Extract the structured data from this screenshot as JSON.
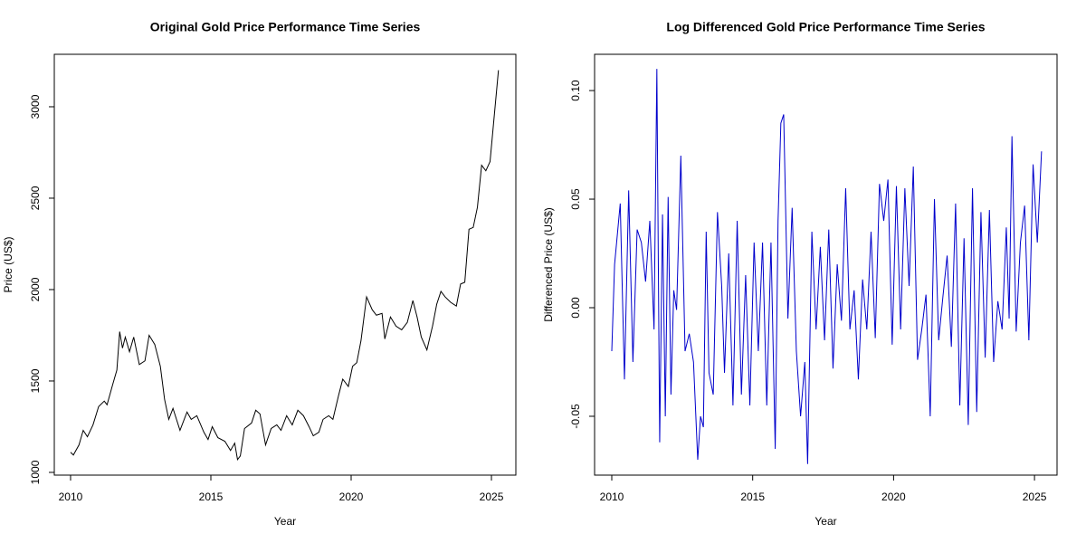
{
  "chart_data": [
    {
      "type": "line",
      "title": "Original Gold Price Performance Time Series",
      "xlabel": "Year",
      "ylabel": "Price (US$)",
      "xlim": [
        2009.42,
        2025.87
      ],
      "xticks": [
        2010,
        2015,
        2020,
        2025
      ],
      "ylim": [
        985,
        3287
      ],
      "yticks": [
        1000,
        1500,
        2000,
        2500,
        3000
      ],
      "color": "#000000",
      "x": [
        2010.0,
        2010.1,
        2010.3,
        2010.45,
        2010.6,
        2010.8,
        2011.0,
        2011.2,
        2011.3,
        2011.5,
        2011.65,
        2011.75,
        2011.85,
        2011.95,
        2012.1,
        2012.25,
        2012.45,
        2012.65,
        2012.8,
        2013.0,
        2013.2,
        2013.35,
        2013.5,
        2013.65,
        2013.9,
        2014.15,
        2014.3,
        2014.5,
        2014.75,
        2014.9,
        2015.05,
        2015.25,
        2015.5,
        2015.7,
        2015.85,
        2015.95,
        2016.05,
        2016.2,
        2016.45,
        2016.6,
        2016.75,
        2016.95,
        2017.15,
        2017.35,
        2017.5,
        2017.7,
        2017.9,
        2018.1,
        2018.3,
        2018.5,
        2018.65,
        2018.85,
        2019.0,
        2019.2,
        2019.35,
        2019.55,
        2019.7,
        2019.9,
        2020.05,
        2020.2,
        2020.35,
        2020.55,
        2020.75,
        2020.9,
        2021.1,
        2021.2,
        2021.4,
        2021.6,
        2021.8,
        2022.0,
        2022.2,
        2022.35,
        2022.5,
        2022.7,
        2022.9,
        2023.05,
        2023.2,
        2023.35,
        2023.55,
        2023.75,
        2023.9,
        2024.05,
        2024.2,
        2024.35,
        2024.5,
        2024.65,
        2024.8,
        2024.95,
        2025.1,
        2025.25
      ],
      "values": [
        1110,
        1095,
        1150,
        1230,
        1195,
        1260,
        1360,
        1390,
        1370,
        1480,
        1560,
        1770,
        1680,
        1740,
        1660,
        1740,
        1590,
        1610,
        1750,
        1700,
        1580,
        1400,
        1290,
        1350,
        1230,
        1330,
        1290,
        1310,
        1220,
        1180,
        1250,
        1190,
        1170,
        1120,
        1160,
        1070,
        1090,
        1240,
        1270,
        1340,
        1320,
        1150,
        1240,
        1260,
        1230,
        1310,
        1260,
        1340,
        1310,
        1250,
        1200,
        1220,
        1290,
        1310,
        1290,
        1420,
        1510,
        1470,
        1580,
        1600,
        1720,
        1960,
        1890,
        1860,
        1870,
        1730,
        1850,
        1800,
        1780,
        1820,
        1940,
        1850,
        1740,
        1670,
        1800,
        1920,
        1990,
        1960,
        1930,
        1910,
        2030,
        2040,
        2330,
        2340,
        2450,
        2680,
        2650,
        2700,
        2950,
        3200
      ]
    },
    {
      "type": "line",
      "title": "Log Differenced Gold Price Performance Time Series",
      "xlabel": "Year",
      "ylabel": "Differenced Price (US$)",
      "xlim": [
        2009.39,
        2025.8
      ],
      "xticks": [
        2010,
        2015,
        2020,
        2025
      ],
      "ylim": [
        -0.0771,
        0.1167
      ],
      "yticks": [
        {
          "value": -0.05,
          "label": "-0.05"
        },
        {
          "value": 0,
          "label": "0.00"
        },
        {
          "value": 0.05,
          "label": "0.05"
        },
        {
          "value": 0.1,
          "label": "0.10"
        }
      ],
      "color": "#0000cc",
      "x": [
        2010.0,
        2010.1,
        2010.3,
        2010.45,
        2010.6,
        2010.75,
        2010.9,
        2011.05,
        2011.2,
        2011.35,
        2011.5,
        2011.6,
        2011.7,
        2011.8,
        2011.9,
        2012.0,
        2012.1,
        2012.2,
        2012.3,
        2012.45,
        2012.6,
        2012.75,
        2012.9,
        2013.05,
        2013.15,
        2013.25,
        2013.35,
        2013.45,
        2013.6,
        2013.75,
        2013.9,
        2014.0,
        2014.15,
        2014.3,
        2014.45,
        2014.6,
        2014.75,
        2014.9,
        2015.05,
        2015.2,
        2015.35,
        2015.5,
        2015.65,
        2015.8,
        2015.9,
        2016.0,
        2016.1,
        2016.25,
        2016.4,
        2016.55,
        2016.7,
        2016.85,
        2016.95,
        2017.1,
        2017.25,
        2017.4,
        2017.55,
        2017.7,
        2017.85,
        2018.0,
        2018.15,
        2018.3,
        2018.45,
        2018.6,
        2018.75,
        2018.9,
        2019.05,
        2019.2,
        2019.35,
        2019.5,
        2019.65,
        2019.8,
        2019.95,
        2020.1,
        2020.25,
        2020.4,
        2020.55,
        2020.7,
        2020.85,
        2021.0,
        2021.15,
        2021.3,
        2021.45,
        2021.6,
        2021.75,
        2021.9,
        2022.05,
        2022.2,
        2022.35,
        2022.5,
        2022.65,
        2022.8,
        2022.95,
        2023.1,
        2023.25,
        2023.4,
        2023.55,
        2023.7,
        2023.85,
        2024.0,
        2024.1,
        2024.2,
        2024.35,
        2024.5,
        2024.65,
        2024.8,
        2024.95,
        2025.1,
        2025.25
      ],
      "values": [
        -0.02,
        0.02,
        0.048,
        -0.033,
        0.054,
        -0.025,
        0.036,
        0.03,
        0.012,
        0.04,
        -0.01,
        0.11,
        -0.062,
        0.043,
        -0.05,
        0.051,
        -0.04,
        0.008,
        -0.001,
        0.07,
        -0.02,
        -0.012,
        -0.025,
        -0.07,
        -0.05,
        -0.055,
        0.035,
        -0.03,
        -0.04,
        0.044,
        0.01,
        -0.03,
        0.025,
        -0.045,
        0.04,
        -0.04,
        0.015,
        -0.045,
        0.03,
        -0.02,
        0.03,
        -0.045,
        0.03,
        -0.065,
        0.04,
        0.085,
        0.089,
        -0.005,
        0.046,
        -0.02,
        -0.05,
        -0.025,
        -0.072,
        0.035,
        -0.01,
        0.028,
        -0.015,
        0.036,
        -0.028,
        0.02,
        -0.006,
        0.055,
        -0.01,
        0.008,
        -0.033,
        0.013,
        -0.01,
        0.035,
        -0.014,
        0.057,
        0.04,
        0.059,
        -0.017,
        0.056,
        -0.01,
        0.055,
        0.01,
        0.065,
        -0.024,
        -0.01,
        0.006,
        -0.05,
        0.05,
        -0.015,
        0.005,
        0.024,
        -0.018,
        0.048,
        -0.045,
        0.032,
        -0.054,
        0.055,
        -0.048,
        0.044,
        -0.023,
        0.045,
        -0.025,
        0.003,
        -0.01,
        0.037,
        -0.005,
        0.079,
        -0.011,
        0.03,
        0.047,
        -0.015,
        0.066,
        0.03,
        0.072
      ]
    }
  ]
}
